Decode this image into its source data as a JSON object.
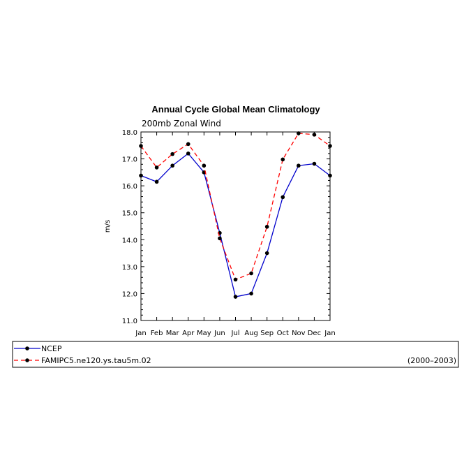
{
  "chart_data": {
    "type": "line",
    "title": "Annual Cycle Global Mean Climatology",
    "subtitle": "200mb Zonal Wind",
    "xlabel": "",
    "ylabel": "m/s",
    "ylim": [
      11.0,
      18.0
    ],
    "y_ticks": [
      "11.0",
      "12.0",
      "13.0",
      "14.0",
      "15.0",
      "16.0",
      "17.0",
      "18.0"
    ],
    "categories": [
      "Jan",
      "Feb",
      "Mar",
      "Apr",
      "May",
      "Jun",
      "Jul",
      "Aug",
      "Sep",
      "Oct",
      "Nov",
      "Dec",
      "Jan"
    ],
    "series": [
      {
        "name": "NCEP",
        "color": "#0000cc",
        "dash": "solid",
        "values": [
          16.38,
          16.15,
          16.75,
          17.2,
          16.5,
          14.25,
          11.88,
          12.0,
          13.5,
          15.58,
          16.75,
          16.82,
          16.38
        ]
      },
      {
        "name": "FAMIPC5.ne120.ys.tau5m.02",
        "color": "#ff0000",
        "dash": "dashed",
        "values": [
          17.48,
          16.68,
          17.18,
          17.55,
          16.75,
          14.05,
          12.52,
          12.75,
          14.48,
          16.98,
          17.95,
          17.9,
          17.48
        ]
      }
    ],
    "grid": false,
    "legend_position": "bottom",
    "annotation": "(2000–2003)"
  }
}
